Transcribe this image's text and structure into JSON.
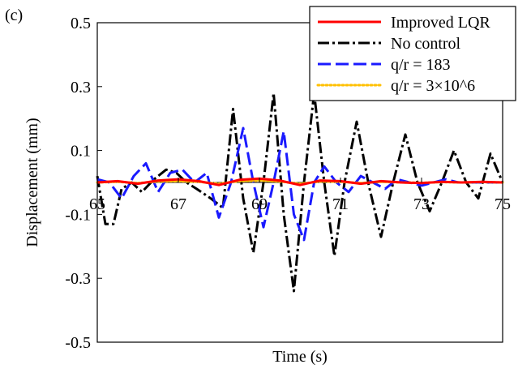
{
  "panel_label": "(c)",
  "chart_data": {
    "type": "line",
    "title": "",
    "xlabel": "Time  (s)",
    "ylabel": "Displacement  (mm)",
    "xlim": [
      65,
      75
    ],
    "ylim": [
      -0.5,
      0.5
    ],
    "x_ticks": [
      65,
      67,
      69,
      71,
      73,
      75
    ],
    "x_tick_labels": [
      "65",
      "67",
      "69",
      "71",
      "73",
      "75"
    ],
    "y_ticks": [
      0.5,
      0.3,
      0.1,
      -0.1,
      -0.3,
      -0.5
    ],
    "y_tick_labels": [
      "0.5",
      "0.3",
      "0.1",
      "-0.1",
      "-0.3",
      "-0.5"
    ],
    "zero_line": true,
    "grid": false,
    "legend_position": "top-right",
    "series": [
      {
        "name": "Improved LQR",
        "color": "#ff0000",
        "style": "solid",
        "x": [
          65,
          65.5,
          66,
          66.5,
          67,
          67.5,
          68,
          68.5,
          69,
          69.5,
          70,
          70.5,
          71,
          71.5,
          72,
          72.5,
          73,
          73.5,
          74,
          74.5,
          75
        ],
        "y": [
          0.0,
          0.004,
          -0.004,
          0.006,
          0.01,
          0.004,
          -0.008,
          0.008,
          0.012,
          0.006,
          -0.008,
          0.006,
          0.004,
          -0.004,
          0.004,
          0.0,
          -0.002,
          0.002,
          0.0,
          0.002,
          0.0
        ]
      },
      {
        "name": "No control",
        "color": "#000000",
        "style": "dashdot",
        "x": [
          65,
          65.2,
          65.4,
          65.6,
          65.85,
          66.1,
          66.4,
          66.7,
          66.95,
          67.2,
          67.45,
          67.8,
          68.1,
          68.35,
          68.6,
          68.85,
          69.1,
          69.35,
          69.6,
          69.85,
          70.1,
          70.35,
          70.6,
          70.85,
          71.1,
          71.4,
          71.7,
          72.0,
          72.3,
          72.6,
          72.9,
          73.2,
          73.5,
          73.8,
          74.1,
          74.4,
          74.7,
          75
        ],
        "y": [
          0.02,
          -0.13,
          -0.13,
          -0.02,
          0.0,
          -0.03,
          0.01,
          0.04,
          0.03,
          0.0,
          -0.02,
          -0.05,
          -0.08,
          0.23,
          -0.05,
          -0.22,
          0.0,
          0.28,
          -0.1,
          -0.34,
          0.0,
          0.28,
          0.0,
          -0.23,
          0.0,
          0.19,
          -0.01,
          -0.17,
          0.0,
          0.15,
          0.0,
          -0.09,
          0.0,
          0.1,
          0.0,
          -0.05,
          0.09,
          0.0
        ]
      },
      {
        "name": "q/r = 183",
        "color": "#1a1aff",
        "style": "longdash",
        "x": [
          65,
          65.3,
          65.6,
          65.9,
          66.2,
          66.5,
          66.8,
          67.1,
          67.4,
          67.7,
          68.0,
          68.3,
          68.6,
          68.85,
          69.1,
          69.35,
          69.6,
          69.85,
          70.1,
          70.35,
          70.6,
          70.9,
          71.2,
          71.5,
          71.8,
          72.1,
          72.4,
          72.7,
          73.0,
          73.3,
          73.6,
          73.9,
          74.2,
          74.5,
          74.8,
          75
        ],
        "y": [
          0.01,
          0.0,
          -0.05,
          0.02,
          0.06,
          -0.03,
          0.03,
          0.04,
          0.0,
          0.03,
          -0.11,
          0.0,
          0.17,
          0.0,
          -0.14,
          0.0,
          0.16,
          -0.1,
          -0.18,
          0.0,
          0.05,
          0.0,
          -0.03,
          0.02,
          0.0,
          -0.02,
          0.01,
          0.0,
          -0.01,
          0.0,
          0.01,
          0.0,
          0.0,
          0.0,
          0.0,
          0.0
        ]
      },
      {
        "name": "q/r = 3×10^6",
        "color": "#ffc000",
        "style": "dotted",
        "x": [
          65,
          65.5,
          66,
          66.5,
          67,
          67.5,
          68,
          68.5,
          69,
          69.5,
          70,
          70.5,
          71,
          71.5,
          72,
          72.5,
          73,
          73.5,
          74,
          74.5,
          75
        ],
        "y": [
          0.0,
          0.002,
          -0.002,
          0.003,
          0.004,
          0.002,
          -0.004,
          0.004,
          0.006,
          0.003,
          -0.004,
          0.003,
          0.002,
          -0.002,
          0.002,
          0.0,
          -0.001,
          0.001,
          0.0,
          0.001,
          0.0
        ]
      }
    ]
  }
}
